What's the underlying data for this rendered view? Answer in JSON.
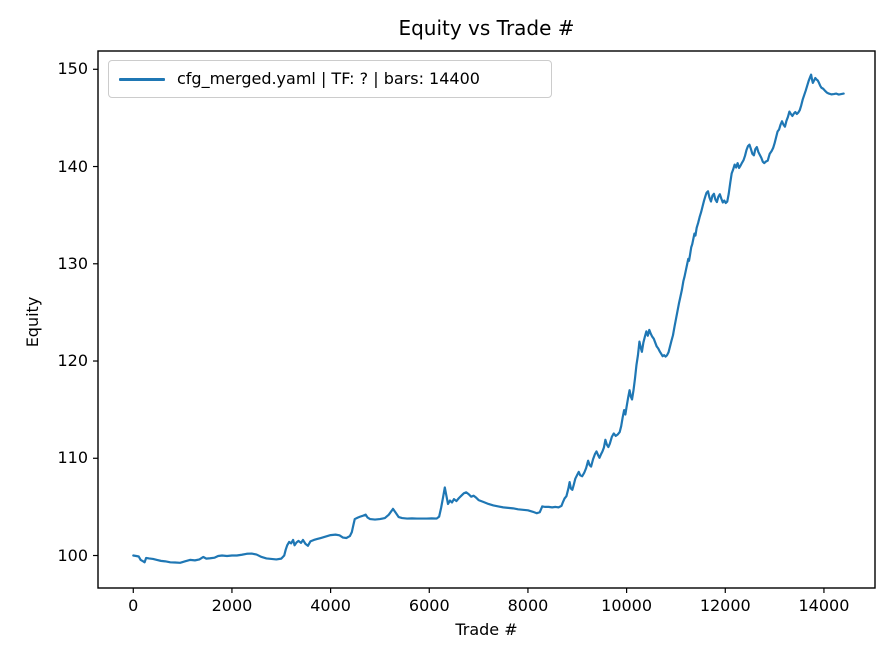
{
  "chart_data": {
    "type": "line",
    "title": "Equity vs Trade #",
    "xlabel": "Trade #",
    "ylabel": "Equity",
    "grid": false,
    "legend_position": "upper-left",
    "line_color": "#1f77b4",
    "axis_color": "#000000",
    "legend_border_color": "#cccccc",
    "xlim": [
      -715,
      15035
    ],
    "ylim": [
      96.66,
      151.88
    ],
    "x_ticks": [
      0,
      2000,
      4000,
      6000,
      8000,
      10000,
      12000,
      14000
    ],
    "y_ticks": [
      100,
      110,
      120,
      130,
      140,
      150
    ],
    "series": [
      {
        "name": "cfg_merged.yaml | TF: ? | bars: 14400",
        "points": [
          [
            0,
            100
          ],
          [
            60,
            99.95
          ],
          [
            110,
            99.9
          ],
          [
            150,
            99.55
          ],
          [
            200,
            99.4
          ],
          [
            230,
            99.3
          ],
          [
            260,
            99.75
          ],
          [
            320,
            99.7
          ],
          [
            400,
            99.65
          ],
          [
            480,
            99.55
          ],
          [
            560,
            99.45
          ],
          [
            650,
            99.4
          ],
          [
            750,
            99.3
          ],
          [
            850,
            99.28
          ],
          [
            950,
            99.25
          ],
          [
            1050,
            99.4
          ],
          [
            1150,
            99.55
          ],
          [
            1250,
            99.5
          ],
          [
            1340,
            99.6
          ],
          [
            1420,
            99.85
          ],
          [
            1480,
            99.68
          ],
          [
            1560,
            99.72
          ],
          [
            1650,
            99.78
          ],
          [
            1720,
            99.95
          ],
          [
            1800,
            100
          ],
          [
            1900,
            99.95
          ],
          [
            2000,
            100
          ],
          [
            2100,
            100
          ],
          [
            2200,
            100.08
          ],
          [
            2300,
            100.18
          ],
          [
            2400,
            100.2
          ],
          [
            2500,
            100.1
          ],
          [
            2600,
            99.85
          ],
          [
            2700,
            99.7
          ],
          [
            2800,
            99.65
          ],
          [
            2900,
            99.6
          ],
          [
            3000,
            99.68
          ],
          [
            3060,
            100
          ],
          [
            3090,
            100.6
          ],
          [
            3120,
            101.05
          ],
          [
            3160,
            101.4
          ],
          [
            3200,
            101.25
          ],
          [
            3240,
            101.6
          ],
          [
            3270,
            101.05
          ],
          [
            3310,
            101.35
          ],
          [
            3350,
            101.5
          ],
          [
            3400,
            101.3
          ],
          [
            3440,
            101.6
          ],
          [
            3490,
            101.2
          ],
          [
            3540,
            101
          ],
          [
            3590,
            101.45
          ],
          [
            3660,
            101.6
          ],
          [
            3730,
            101.7
          ],
          [
            3800,
            101.8
          ],
          [
            3900,
            101.95
          ],
          [
            4000,
            102.1
          ],
          [
            4100,
            102.15
          ],
          [
            4180,
            102.08
          ],
          [
            4250,
            101.85
          ],
          [
            4320,
            101.8
          ],
          [
            4390,
            102
          ],
          [
            4430,
            102.4
          ],
          [
            4460,
            103.1
          ],
          [
            4490,
            103.75
          ],
          [
            4550,
            103.9
          ],
          [
            4600,
            104
          ],
          [
            4660,
            104.1
          ],
          [
            4710,
            104.2
          ],
          [
            4750,
            103.9
          ],
          [
            4800,
            103.75
          ],
          [
            4900,
            103.7
          ],
          [
            5000,
            103.75
          ],
          [
            5100,
            103.85
          ],
          [
            5180,
            104.2
          ],
          [
            5265,
            104.8
          ],
          [
            5320,
            104.4
          ],
          [
            5380,
            103.95
          ],
          [
            5450,
            103.85
          ],
          [
            5550,
            103.8
          ],
          [
            5650,
            103.82
          ],
          [
            5750,
            103.8
          ],
          [
            5850,
            103.8
          ],
          [
            5950,
            103.8
          ],
          [
            6050,
            103.82
          ],
          [
            6150,
            103.8
          ],
          [
            6200,
            104
          ],
          [
            6240,
            104.9
          ],
          [
            6280,
            106
          ],
          [
            6315,
            107
          ],
          [
            6345,
            106.2
          ],
          [
            6380,
            105.3
          ],
          [
            6420,
            105.65
          ],
          [
            6460,
            105.45
          ],
          [
            6500,
            105.8
          ],
          [
            6550,
            105.6
          ],
          [
            6600,
            105.9
          ],
          [
            6650,
            106.15
          ],
          [
            6700,
            106.4
          ],
          [
            6750,
            106.5
          ],
          [
            6800,
            106.3
          ],
          [
            6850,
            106.05
          ],
          [
            6900,
            106.15
          ],
          [
            6950,
            105.95
          ],
          [
            7000,
            105.7
          ],
          [
            7100,
            105.5
          ],
          [
            7200,
            105.3
          ],
          [
            7300,
            105.15
          ],
          [
            7400,
            105.05
          ],
          [
            7500,
            104.95
          ],
          [
            7600,
            104.9
          ],
          [
            7700,
            104.85
          ],
          [
            7800,
            104.75
          ],
          [
            7900,
            104.7
          ],
          [
            8000,
            104.65
          ],
          [
            8100,
            104.5
          ],
          [
            8180,
            104.35
          ],
          [
            8240,
            104.45
          ],
          [
            8290,
            105.05
          ],
          [
            8350,
            105
          ],
          [
            8420,
            105
          ],
          [
            8490,
            104.95
          ],
          [
            8560,
            105
          ],
          [
            8620,
            104.95
          ],
          [
            8680,
            105.1
          ],
          [
            8710,
            105.5
          ],
          [
            8740,
            105.85
          ],
          [
            8780,
            106.1
          ],
          [
            8820,
            106.9
          ],
          [
            8845,
            107.55
          ],
          [
            8870,
            106.9
          ],
          [
            8900,
            106.75
          ],
          [
            8930,
            107.3
          ],
          [
            8960,
            107.9
          ],
          [
            9000,
            108.3
          ],
          [
            9030,
            108.6
          ],
          [
            9060,
            108.25
          ],
          [
            9100,
            108.15
          ],
          [
            9140,
            108.5
          ],
          [
            9180,
            109
          ],
          [
            9220,
            109.75
          ],
          [
            9250,
            109.3
          ],
          [
            9280,
            109.15
          ],
          [
            9320,
            109.9
          ],
          [
            9360,
            110.45
          ],
          [
            9390,
            110.7
          ],
          [
            9420,
            110.35
          ],
          [
            9450,
            110.05
          ],
          [
            9480,
            110.4
          ],
          [
            9510,
            110.7
          ],
          [
            9540,
            111.1
          ],
          [
            9570,
            111.9
          ],
          [
            9600,
            111.4
          ],
          [
            9630,
            111.15
          ],
          [
            9660,
            111.5
          ],
          [
            9700,
            112.2
          ],
          [
            9740,
            112.55
          ],
          [
            9780,
            112.3
          ],
          [
            9820,
            112.45
          ],
          [
            9860,
            112.7
          ],
          [
            9890,
            113.3
          ],
          [
            9920,
            114.2
          ],
          [
            9950,
            114.95
          ],
          [
            9975,
            114.5
          ],
          [
            10000,
            115.3
          ],
          [
            10030,
            116.2
          ],
          [
            10060,
            117
          ],
          [
            10085,
            116.35
          ],
          [
            10110,
            116.05
          ],
          [
            10140,
            117
          ],
          [
            10170,
            118.2
          ],
          [
            10200,
            119.6
          ],
          [
            10230,
            120.6
          ],
          [
            10260,
            122
          ],
          [
            10285,
            121.4
          ],
          [
            10310,
            120.95
          ],
          [
            10340,
            121.9
          ],
          [
            10370,
            122.5
          ],
          [
            10400,
            123.05
          ],
          [
            10430,
            122.6
          ],
          [
            10460,
            123.2
          ],
          [
            10490,
            122.8
          ],
          [
            10520,
            122.5
          ],
          [
            10550,
            122.3
          ],
          [
            10580,
            121.9
          ],
          [
            10610,
            121.5
          ],
          [
            10640,
            121.3
          ],
          [
            10670,
            121
          ],
          [
            10700,
            120.75
          ],
          [
            10730,
            120.5
          ],
          [
            10760,
            120.6
          ],
          [
            10790,
            120.45
          ],
          [
            10820,
            120.6
          ],
          [
            10850,
            120.9
          ],
          [
            10880,
            121.5
          ],
          [
            10910,
            122.1
          ],
          [
            10940,
            122.65
          ],
          [
            10970,
            123.5
          ],
          [
            11000,
            124.3
          ],
          [
            11030,
            125.1
          ],
          [
            11060,
            125.9
          ],
          [
            11090,
            126.6
          ],
          [
            11120,
            127.3
          ],
          [
            11150,
            128.2
          ],
          [
            11175,
            128.7
          ],
          [
            11200,
            129.3
          ],
          [
            11225,
            129.9
          ],
          [
            11250,
            130.5
          ],
          [
            11265,
            130.3
          ],
          [
            11285,
            130.9
          ],
          [
            11310,
            131.7
          ],
          [
            11330,
            132
          ],
          [
            11350,
            132.5
          ],
          [
            11375,
            133.1
          ],
          [
            11395,
            132.9
          ],
          [
            11420,
            133.7
          ],
          [
            11450,
            134.2
          ],
          [
            11480,
            134.8
          ],
          [
            11510,
            135.3
          ],
          [
            11540,
            135.9
          ],
          [
            11570,
            136.5
          ],
          [
            11600,
            137
          ],
          [
            11620,
            137.3
          ],
          [
            11650,
            137.45
          ],
          [
            11680,
            136.8
          ],
          [
            11710,
            136.4
          ],
          [
            11740,
            137
          ],
          [
            11770,
            137.2
          ],
          [
            11800,
            136.6
          ],
          [
            11830,
            136.35
          ],
          [
            11860,
            136.9
          ],
          [
            11890,
            137.15
          ],
          [
            11920,
            136.7
          ],
          [
            11950,
            136.3
          ],
          [
            11980,
            136.5
          ],
          [
            12010,
            136.25
          ],
          [
            12040,
            136.4
          ],
          [
            12070,
            137.2
          ],
          [
            12100,
            138.3
          ],
          [
            12130,
            139.3
          ],
          [
            12160,
            139.7
          ],
          [
            12190,
            140.2
          ],
          [
            12220,
            139.9
          ],
          [
            12250,
            140.35
          ],
          [
            12280,
            139.85
          ],
          [
            12310,
            140.1
          ],
          [
            12340,
            140.4
          ],
          [
            12370,
            140.65
          ],
          [
            12400,
            141.1
          ],
          [
            12430,
            141.7
          ],
          [
            12460,
            142.1
          ],
          [
            12490,
            142.25
          ],
          [
            12520,
            141.8
          ],
          [
            12550,
            141.3
          ],
          [
            12580,
            141.15
          ],
          [
            12610,
            141.8
          ],
          [
            12640,
            142
          ],
          [
            12670,
            141.5
          ],
          [
            12700,
            141.2
          ],
          [
            12730,
            140.9
          ],
          [
            12760,
            140.5
          ],
          [
            12790,
            140.35
          ],
          [
            12820,
            140.5
          ],
          [
            12860,
            140.6
          ],
          [
            12900,
            141.3
          ],
          [
            12940,
            141.6
          ],
          [
            12970,
            141.9
          ],
          [
            13000,
            142.4
          ],
          [
            13030,
            143
          ],
          [
            13060,
            143.6
          ],
          [
            13090,
            143.8
          ],
          [
            13120,
            144.3
          ],
          [
            13150,
            144.65
          ],
          [
            13180,
            144.3
          ],
          [
            13210,
            144.1
          ],
          [
            13240,
            144.7
          ],
          [
            13270,
            145.1
          ],
          [
            13300,
            145.65
          ],
          [
            13330,
            145.4
          ],
          [
            13360,
            145.2
          ],
          [
            13390,
            145.45
          ],
          [
            13420,
            145.6
          ],
          [
            13450,
            145.4
          ],
          [
            13480,
            145.55
          ],
          [
            13510,
            145.8
          ],
          [
            13540,
            146.3
          ],
          [
            13570,
            146.9
          ],
          [
            13600,
            147.35
          ],
          [
            13630,
            147.8
          ],
          [
            13660,
            148.3
          ],
          [
            13690,
            148.8
          ],
          [
            13720,
            149.2
          ],
          [
            13740,
            149.45
          ],
          [
            13760,
            148.9
          ],
          [
            13775,
            148.6
          ],
          [
            13800,
            148.85
          ],
          [
            13825,
            149.1
          ],
          [
            13850,
            148.95
          ],
          [
            13875,
            148.85
          ],
          [
            13900,
            148.6
          ],
          [
            13925,
            148.3
          ],
          [
            13950,
            148.1
          ],
          [
            13985,
            148
          ],
          [
            14020,
            147.8
          ],
          [
            14060,
            147.6
          ],
          [
            14100,
            147.5
          ],
          [
            14150,
            147.42
          ],
          [
            14200,
            147.45
          ],
          [
            14250,
            147.5
          ],
          [
            14300,
            147.4
          ],
          [
            14350,
            147.45
          ],
          [
            14400,
            147.5
          ]
        ]
      }
    ]
  }
}
